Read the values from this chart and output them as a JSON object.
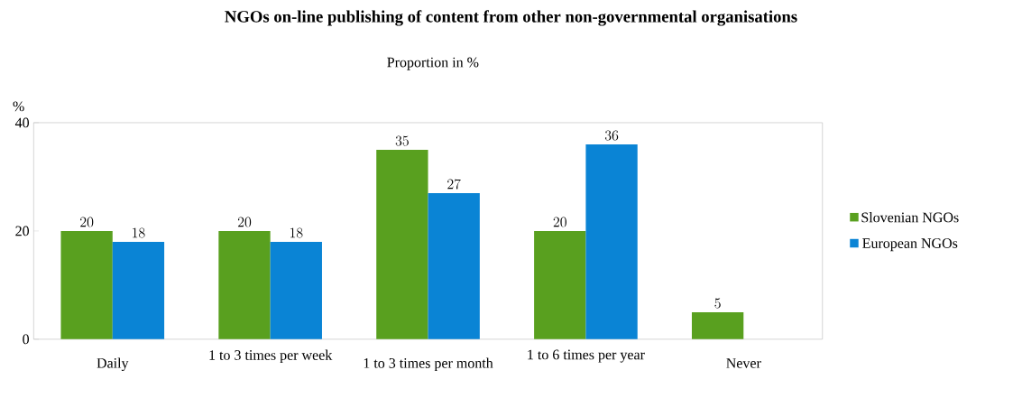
{
  "chart_data": {
    "type": "bar",
    "title": "NGOs on-line publishing of content from other non-governmental organisations",
    "subtitle": "Proportion in %",
    "ylabel": "%",
    "categories": [
      "Daily",
      "1 to 3 times per week",
      "1 to 3 times per month",
      "1 to 6 times per year",
      "Never"
    ],
    "series": [
      {
        "name": "Slovenian NGOs",
        "color": "#59a01f",
        "values": [
          20,
          20,
          35,
          20,
          5
        ]
      },
      {
        "name": "European NGOs",
        "color": "#0a84d5",
        "values": [
          18,
          18,
          27,
          36,
          null
        ]
      }
    ],
    "ylim": [
      0,
      40
    ],
    "yticks": [
      0,
      20,
      40
    ],
    "data_labels": true,
    "legend": "right",
    "grid": false
  }
}
